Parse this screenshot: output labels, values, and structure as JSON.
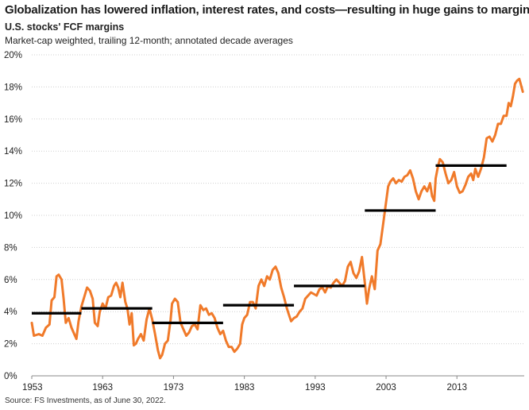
{
  "title": "Globalization has lowered inflation, interest rates, and costs—resulting in huge gains to margins",
  "subtitle": "U.S. stocks' FCF margins",
  "note": "Market-cap weighted, trailing 12-month; annotated decade averages",
  "source": "Source: FS Investments, as of June 30, 2022.",
  "colors": {
    "series": "#f07a2a",
    "average": "#000000",
    "axis": "#888888",
    "grid": "#cfcfcf"
  },
  "chart_data": {
    "type": "line",
    "ylabel": "",
    "xlabel": "",
    "xlim": [
      1953,
      2022.5
    ],
    "ylim": [
      0,
      20
    ],
    "x_ticks": [
      1953,
      1963,
      1973,
      1983,
      1993,
      2003,
      2013
    ],
    "x_tick_labels": [
      "1953",
      "1963",
      "1973",
      "1983",
      "1993",
      "2003",
      "2013"
    ],
    "y_ticks": [
      0,
      2,
      4,
      6,
      8,
      10,
      12,
      14,
      16,
      18,
      20
    ],
    "y_tick_labels": [
      "0%",
      "2%",
      "4%",
      "6%",
      "8%",
      "10%",
      "12%",
      "14%",
      "16%",
      "18%",
      "20%"
    ],
    "grid": true,
    "series": [
      {
        "values": [
          [
            1953.0,
            3.3
          ],
          [
            1953.3,
            2.5
          ],
          [
            1954.0,
            2.6
          ],
          [
            1954.5,
            2.5
          ],
          [
            1955.0,
            3.0
          ],
          [
            1955.5,
            3.2
          ],
          [
            1955.8,
            4.7
          ],
          [
            1956.2,
            4.9
          ],
          [
            1956.5,
            6.2
          ],
          [
            1956.8,
            6.3
          ],
          [
            1957.2,
            6.0
          ],
          [
            1957.5,
            4.8
          ],
          [
            1957.8,
            3.3
          ],
          [
            1958.2,
            3.6
          ],
          [
            1958.6,
            3.0
          ],
          [
            1959.0,
            2.6
          ],
          [
            1959.3,
            2.3
          ],
          [
            1959.6,
            3.4
          ],
          [
            1960.0,
            4.3
          ],
          [
            1960.4,
            4.9
          ],
          [
            1960.8,
            5.5
          ],
          [
            1961.2,
            5.3
          ],
          [
            1961.6,
            4.8
          ],
          [
            1961.9,
            3.3
          ],
          [
            1962.3,
            3.1
          ],
          [
            1962.6,
            4.0
          ],
          [
            1963.0,
            4.5
          ],
          [
            1963.4,
            4.2
          ],
          [
            1963.8,
            4.9
          ],
          [
            1964.2,
            5.0
          ],
          [
            1964.6,
            5.6
          ],
          [
            1964.9,
            5.8
          ],
          [
            1965.2,
            5.5
          ],
          [
            1965.5,
            4.9
          ],
          [
            1965.8,
            5.8
          ],
          [
            1966.2,
            4.6
          ],
          [
            1966.5,
            4.2
          ],
          [
            1966.8,
            3.2
          ],
          [
            1967.1,
            3.9
          ],
          [
            1967.4,
            1.9
          ],
          [
            1967.7,
            2.0
          ],
          [
            1968.0,
            2.3
          ],
          [
            1968.4,
            2.6
          ],
          [
            1968.8,
            2.2
          ],
          [
            1969.2,
            3.5
          ],
          [
            1969.6,
            4.2
          ],
          [
            1970.0,
            3.5
          ],
          [
            1970.4,
            2.6
          ],
          [
            1970.8,
            1.6
          ],
          [
            1971.1,
            1.1
          ],
          [
            1971.4,
            1.3
          ],
          [
            1971.8,
            2.0
          ],
          [
            1972.2,
            2.2
          ],
          [
            1972.6,
            3.5
          ],
          [
            1972.8,
            4.5
          ],
          [
            1973.2,
            4.8
          ],
          [
            1973.6,
            4.6
          ],
          [
            1974.0,
            3.3
          ],
          [
            1974.4,
            2.9
          ],
          [
            1974.8,
            2.5
          ],
          [
            1975.2,
            2.7
          ],
          [
            1975.6,
            3.1
          ],
          [
            1976.0,
            3.2
          ],
          [
            1976.4,
            2.9
          ],
          [
            1976.8,
            4.4
          ],
          [
            1977.2,
            4.1
          ],
          [
            1977.6,
            4.2
          ],
          [
            1978.0,
            3.8
          ],
          [
            1978.4,
            3.9
          ],
          [
            1978.8,
            3.6
          ],
          [
            1979.2,
            3.0
          ],
          [
            1979.6,
            2.6
          ],
          [
            1980.0,
            2.8
          ],
          [
            1980.4,
            2.2
          ],
          [
            1980.8,
            1.8
          ],
          [
            1981.2,
            1.8
          ],
          [
            1981.6,
            1.5
          ],
          [
            1982.0,
            1.7
          ],
          [
            1982.4,
            2.0
          ],
          [
            1982.7,
            3.2
          ],
          [
            1983.0,
            3.6
          ],
          [
            1983.4,
            3.8
          ],
          [
            1983.8,
            4.6
          ],
          [
            1984.2,
            4.6
          ],
          [
            1984.6,
            4.2
          ],
          [
            1985.0,
            5.6
          ],
          [
            1985.4,
            6.0
          ],
          [
            1985.8,
            5.6
          ],
          [
            1986.2,
            6.2
          ],
          [
            1986.6,
            6.0
          ],
          [
            1987.0,
            6.6
          ],
          [
            1987.4,
            6.8
          ],
          [
            1987.8,
            6.4
          ],
          [
            1988.2,
            5.5
          ],
          [
            1988.6,
            4.9
          ],
          [
            1989.0,
            4.2
          ],
          [
            1989.3,
            3.8
          ],
          [
            1989.6,
            3.4
          ],
          [
            1990.0,
            3.6
          ],
          [
            1990.4,
            3.7
          ],
          [
            1990.8,
            4.0
          ],
          [
            1991.2,
            4.2
          ],
          [
            1991.6,
            4.8
          ],
          [
            1992.0,
            5.0
          ],
          [
            1992.4,
            5.2
          ],
          [
            1992.8,
            5.1
          ],
          [
            1993.2,
            5.0
          ],
          [
            1993.6,
            5.4
          ],
          [
            1994.0,
            5.5
          ],
          [
            1994.4,
            5.2
          ],
          [
            1994.8,
            5.6
          ],
          [
            1995.2,
            5.5
          ],
          [
            1995.6,
            5.8
          ],
          [
            1996.0,
            6.0
          ],
          [
            1996.4,
            5.8
          ],
          [
            1996.8,
            5.6
          ],
          [
            1997.2,
            5.9
          ],
          [
            1997.6,
            6.8
          ],
          [
            1998.0,
            7.1
          ],
          [
            1998.4,
            6.4
          ],
          [
            1998.8,
            6.1
          ],
          [
            1999.2,
            6.5
          ],
          [
            1999.6,
            7.4
          ],
          [
            2000.0,
            5.8
          ],
          [
            2000.3,
            4.5
          ],
          [
            2000.6,
            5.4
          ],
          [
            2001.0,
            6.2
          ],
          [
            2001.4,
            5.4
          ],
          [
            2001.8,
            7.8
          ],
          [
            2002.2,
            8.2
          ],
          [
            2002.6,
            9.5
          ],
          [
            2003.0,
            10.8
          ],
          [
            2003.3,
            11.8
          ],
          [
            2003.6,
            12.1
          ],
          [
            2004.0,
            12.3
          ],
          [
            2004.4,
            12.0
          ],
          [
            2004.8,
            12.2
          ],
          [
            2005.2,
            12.1
          ],
          [
            2005.6,
            12.4
          ],
          [
            2006.0,
            12.5
          ],
          [
            2006.4,
            12.8
          ],
          [
            2006.8,
            12.3
          ],
          [
            2007.2,
            11.5
          ],
          [
            2007.6,
            11.0
          ],
          [
            2008.0,
            11.5
          ],
          [
            2008.4,
            11.8
          ],
          [
            2008.8,
            11.5
          ],
          [
            2009.2,
            12.0
          ],
          [
            2009.5,
            11.2
          ],
          [
            2009.8,
            10.9
          ],
          [
            2010.0,
            12.3
          ],
          [
            2010.3,
            13.0
          ],
          [
            2010.6,
            13.5
          ],
          [
            2011.0,
            13.3
          ],
          [
            2011.4,
            12.6
          ],
          [
            2011.8,
            12.0
          ],
          [
            2012.2,
            12.2
          ],
          [
            2012.6,
            12.7
          ],
          [
            2013.0,
            11.8
          ],
          [
            2013.4,
            11.4
          ],
          [
            2013.8,
            11.5
          ],
          [
            2014.2,
            11.9
          ],
          [
            2014.6,
            12.4
          ],
          [
            2015.0,
            12.6
          ],
          [
            2015.3,
            12.2
          ],
          [
            2015.6,
            12.9
          ],
          [
            2016.0,
            12.4
          ],
          [
            2016.4,
            12.9
          ],
          [
            2016.8,
            13.6
          ],
          [
            2017.2,
            14.8
          ],
          [
            2017.6,
            14.9
          ],
          [
            2018.0,
            14.6
          ],
          [
            2018.4,
            15.0
          ],
          [
            2018.8,
            15.7
          ],
          [
            2019.2,
            15.7
          ],
          [
            2019.6,
            16.2
          ],
          [
            2020.0,
            16.2
          ],
          [
            2020.3,
            17.0
          ],
          [
            2020.6,
            16.8
          ],
          [
            2020.9,
            17.4
          ],
          [
            2021.2,
            18.2
          ],
          [
            2021.5,
            18.4
          ],
          [
            2021.8,
            18.5
          ],
          [
            2022.0,
            18.2
          ],
          [
            2022.3,
            17.7
          ]
        ]
      }
    ],
    "decade_averages": [
      {
        "start": 1953,
        "end": 1960,
        "value": 3.9
      },
      {
        "start": 1960,
        "end": 1970,
        "value": 4.2
      },
      {
        "start": 1970,
        "end": 1980,
        "value": 3.3
      },
      {
        "start": 1980,
        "end": 1990,
        "value": 4.4
      },
      {
        "start": 1990,
        "end": 2000,
        "value": 5.6
      },
      {
        "start": 2000,
        "end": 2010,
        "value": 10.3
      },
      {
        "start": 2010,
        "end": 2020,
        "value": 13.1
      }
    ]
  }
}
